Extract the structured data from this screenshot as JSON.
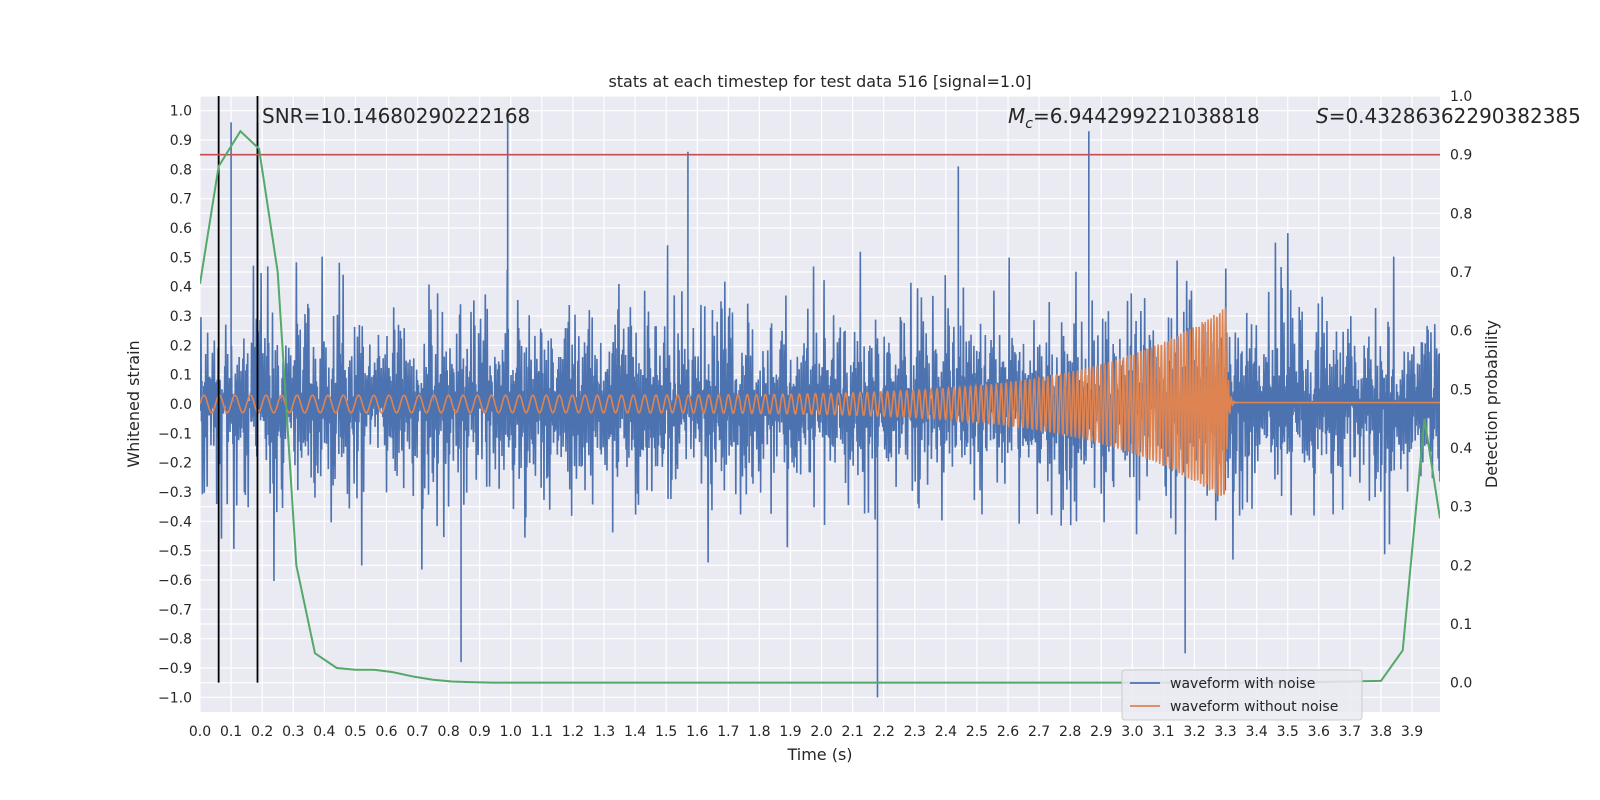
{
  "chart_data": {
    "type": "line",
    "title": "stats at each timestep for test data 516 [signal=1.0]",
    "xlabel": "Time (s)",
    "ylabel": "Whitened strain",
    "y2label": "Detection probability",
    "xlim": [
      0.0,
      3.99
    ],
    "ylim": [
      -1.05,
      1.05
    ],
    "y2lim": [
      -0.05,
      1.0
    ],
    "x_ticks": [
      0.0,
      0.1,
      0.2,
      0.3,
      0.4,
      0.5,
      0.6,
      0.7,
      0.8,
      0.9,
      1.0,
      1.1,
      1.2,
      1.3,
      1.4,
      1.5,
      1.6,
      1.7,
      1.8,
      1.9,
      2.0,
      2.1,
      2.2,
      2.3,
      2.4,
      2.5,
      2.6,
      2.7,
      2.8,
      2.9,
      3.0,
      3.1,
      3.2,
      3.3,
      3.4,
      3.5,
      3.6,
      3.7,
      3.8,
      3.9
    ],
    "x_tick_labels": [
      "0.0",
      "0.1",
      "0.2",
      "0.3",
      "0.4",
      "0.5",
      "0.6",
      "0.7",
      "0.8",
      "0.9",
      "1.0",
      "1.1",
      "1.2",
      "1.3",
      "1.4",
      "1.5",
      "1.6",
      "1.7",
      "1.8",
      "1.9",
      "2.0",
      "2.1",
      "2.2",
      "2.3",
      "2.4",
      "2.5",
      "2.6",
      "2.7",
      "2.8",
      "2.9",
      "3.0",
      "3.1",
      "3.2",
      "3.3",
      "3.4",
      "3.5",
      "3.6",
      "3.7",
      "3.8",
      "3.9"
    ],
    "y_ticks": [
      1.0,
      0.9,
      0.8,
      0.7,
      0.6,
      0.5,
      0.4,
      0.3,
      0.2,
      0.1,
      0.0,
      -0.1,
      -0.2,
      -0.3,
      -0.4,
      -0.5,
      -0.6,
      -0.7,
      -0.8,
      -0.9,
      -1.0
    ],
    "y_tick_labels": [
      "1.0",
      "0.9",
      "0.8",
      "0.7",
      "0.6",
      "0.5",
      "0.4",
      "0.3",
      "0.2",
      "0.1",
      "0.0",
      "−0.1",
      "−0.2",
      "−0.3",
      "−0.4",
      "−0.5",
      "−0.6",
      "−0.7",
      "−0.8",
      "−0.9",
      "−1.0"
    ],
    "y2_ticks": [
      1.0,
      0.9,
      0.8,
      0.7,
      0.6,
      0.5,
      0.4,
      0.3,
      0.2,
      0.1,
      0.0
    ],
    "y2_tick_labels": [
      "1.0",
      "0.9",
      "0.8",
      "0.7",
      "0.6",
      "0.5",
      "0.4",
      "0.3",
      "0.2",
      "0.1",
      "0.0"
    ],
    "annotations": {
      "snr": "SNR=10.14680290222168",
      "mc_symbol": "M",
      "mc_sub": "c",
      "mc_value": "=6.944299221038818",
      "s_symbol": "S",
      "s_value": "=0.43286362290382385"
    },
    "legend": {
      "position": "lower-right",
      "entries": [
        "waveform with noise",
        "waveform without noise"
      ]
    },
    "colors": {
      "noise": "#4c72b0",
      "clean": "#dd8452",
      "prob": "#55a868",
      "threshold": "#c44e52",
      "marker": "#000000",
      "plot_bg": "#eaeaf2",
      "grid": "#ffffff"
    },
    "threshold_prob": 0.9,
    "vertical_markers_x": [
      0.06,
      0.185
    ],
    "series": [
      {
        "name": "waveform with noise",
        "axis": "left",
        "generated": true,
        "t_range": [
          0.0,
          3.99
        ],
        "amplitude": 0.95,
        "seed": 516,
        "spikes": [
          {
            "x": 0.1,
            "y": 0.96
          },
          {
            "x": 0.185,
            "y": 0.96
          },
          {
            "x": 0.99,
            "y": 0.97
          },
          {
            "x": 1.57,
            "y": 0.86
          },
          {
            "x": 2.18,
            "y": -1.0
          },
          {
            "x": 2.44,
            "y": 0.81
          },
          {
            "x": 2.86,
            "y": 0.93
          },
          {
            "x": 0.84,
            "y": -0.88
          },
          {
            "x": 3.17,
            "y": -0.85
          }
        ]
      },
      {
        "name": "waveform without noise",
        "axis": "left",
        "generated": true,
        "t_range": [
          0.0,
          3.99
        ],
        "merger_time": 3.3,
        "base_amplitude": 0.03,
        "peak_amplitude": 0.33,
        "base_frequency": 20,
        "peak_frequency": 110
      },
      {
        "name": "detection probability",
        "axis": "right",
        "x": [
          0.0,
          0.06,
          0.13,
          0.19,
          0.25,
          0.31,
          0.37,
          0.44,
          0.5,
          0.56,
          0.62,
          0.69,
          0.75,
          0.81,
          0.87,
          0.94,
          1.0,
          1.5,
          2.0,
          2.5,
          3.0,
          3.5,
          3.8,
          3.87,
          3.94,
          3.99
        ],
        "y": [
          0.68,
          0.88,
          0.94,
          0.91,
          0.7,
          0.2,
          0.05,
          0.025,
          0.022,
          0.022,
          0.018,
          0.01,
          0.005,
          0.002,
          0.001,
          0.0,
          0.0,
          0.0,
          0.0,
          0.0,
          0.0,
          0.0,
          0.003,
          0.055,
          0.45,
          0.28
        ]
      }
    ]
  }
}
